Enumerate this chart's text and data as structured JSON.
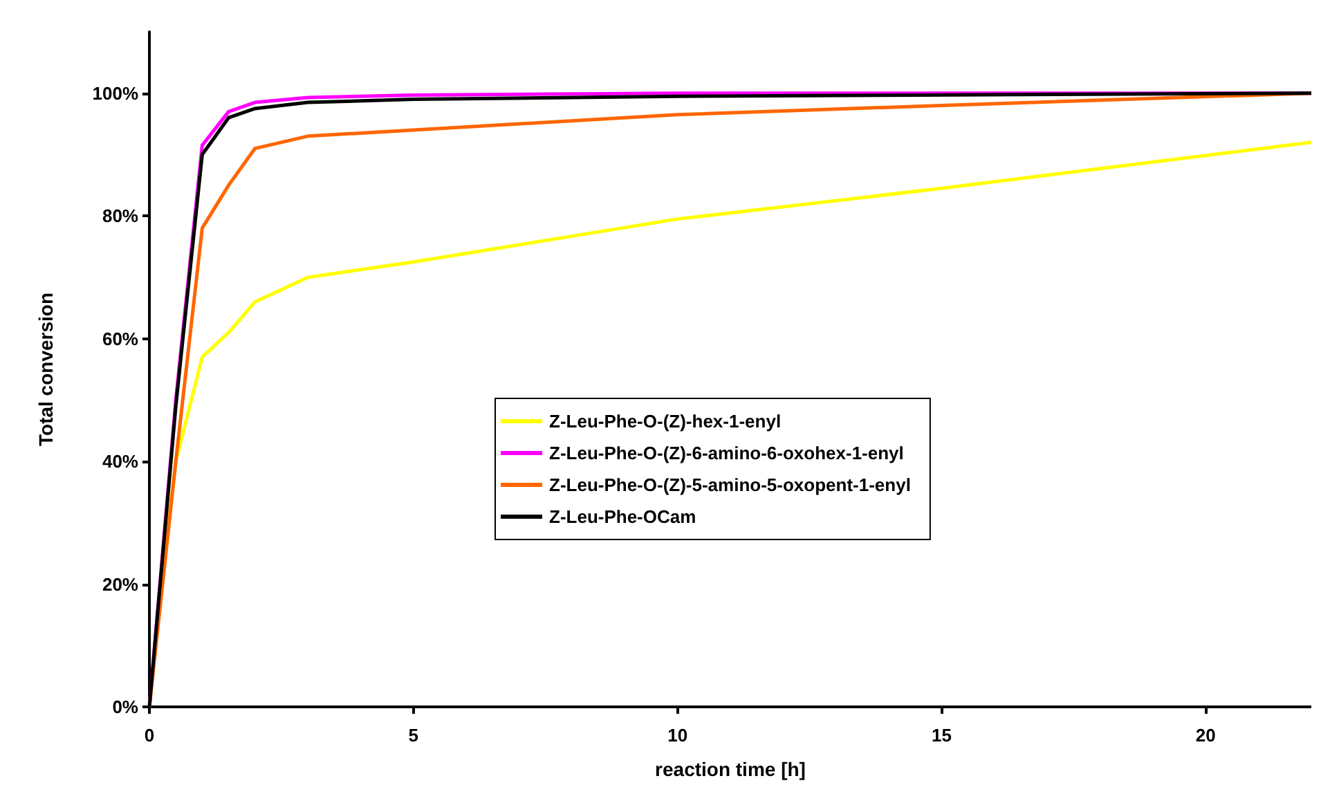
{
  "chart_data": {
    "type": "line",
    "xlabel": "reaction time [h]",
    "ylabel": "Total conversion",
    "xlim": [
      0,
      22
    ],
    "xticks": [
      0,
      5,
      10,
      15,
      20
    ],
    "ylim": [
      0,
      110
    ],
    "yticks": [
      {
        "value": 0,
        "label": "0%"
      },
      {
        "value": 20,
        "label": "20%"
      },
      {
        "value": 40,
        "label": "40%"
      },
      {
        "value": 60,
        "label": "60%"
      },
      {
        "value": 80,
        "label": "80%"
      },
      {
        "value": 100,
        "label": "100%"
      }
    ],
    "grid": false,
    "legend": "center",
    "marker": "none",
    "line_style": "solid",
    "series": [
      {
        "name": "Z-Leu-Phe-O-(Z)-hex-1-enyl",
        "color": "#ffff00",
        "x": [
          0,
          0.25,
          0.5,
          1,
          1.5,
          2,
          3,
          5,
          10,
          15,
          22
        ],
        "values": [
          0,
          22,
          40,
          57,
          61,
          66,
          70,
          72.5,
          79.5,
          84.5,
          92
        ]
      },
      {
        "name": "Z-Leu-Phe-O-(Z)-6-amino-6-oxohex-1-enyl",
        "color": "#ff00ff",
        "x": [
          0,
          0.5,
          1,
          1.5,
          2,
          3,
          5,
          10,
          22
        ],
        "values": [
          0,
          50,
          91.5,
          97,
          98.5,
          99.3,
          99.7,
          100,
          100
        ]
      },
      {
        "name": "Z-Leu-Phe-O-(Z)-5-amino-5-oxopent-1-enyl",
        "color": "#ff6600",
        "x": [
          0,
          0.25,
          0.5,
          1,
          1.5,
          2,
          3,
          5,
          10,
          15,
          22
        ],
        "values": [
          0,
          20,
          40,
          78,
          85,
          91,
          93,
          94,
          96.5,
          98,
          100
        ]
      },
      {
        "name": "Z-Leu-Phe-OCam",
        "color": "#000000",
        "x": [
          0,
          0.5,
          1,
          1.5,
          2,
          3,
          5,
          10,
          22
        ],
        "values": [
          0,
          49,
          90,
          96,
          97.5,
          98.5,
          99,
          99.5,
          100
        ]
      }
    ]
  }
}
